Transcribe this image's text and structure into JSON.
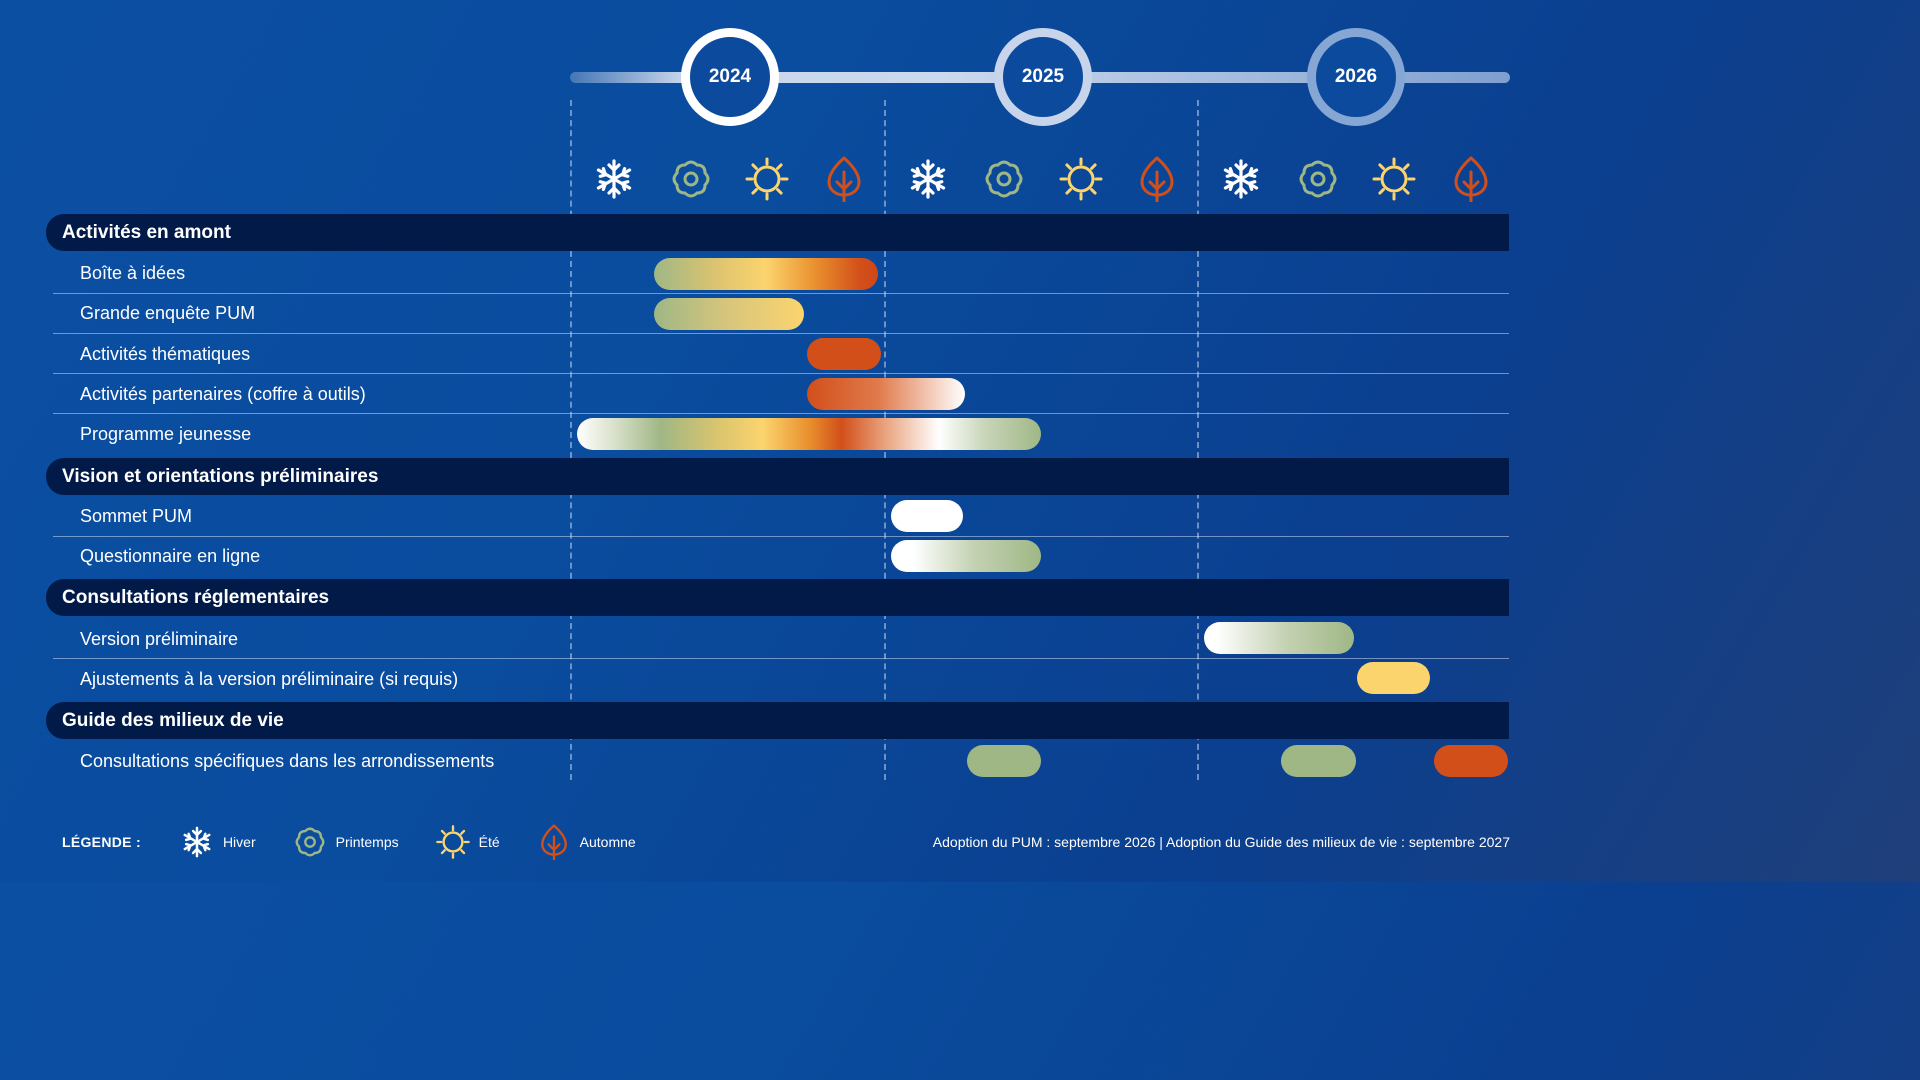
{
  "years": [
    "2024",
    "2025",
    "2026"
  ],
  "seasons": [
    "Hiver",
    "Printemps",
    "Été",
    "Automne"
  ],
  "colors": {
    "hiver": "#ffffff",
    "printemps": "#9fb785",
    "ete": "#fbd46e",
    "automne": "#d24f1a",
    "section_band": "#011a47"
  },
  "sections": [
    {
      "label": "Activités en amont",
      "tasks": [
        {
          "label": "Boîte à idées",
          "span": "Printemps 2024 – Automne 2024"
        },
        {
          "label": "Grande enquête PUM",
          "span": "Printemps 2024 – Été 2024"
        },
        {
          "label": "Activités thématiques",
          "span": "Automne 2024"
        },
        {
          "label": "Activités partenaires (coffre à outils)",
          "span": "Automne 2024 – Hiver 2025"
        },
        {
          "label": "Programme jeunesse",
          "span": "Hiver 2024 – Printemps 2025"
        }
      ]
    },
    {
      "label": "Vision et orientations préliminaires",
      "tasks": [
        {
          "label": "Sommet PUM",
          "span": "Hiver 2025"
        },
        {
          "label": "Questionnaire en ligne",
          "span": "Hiver 2025 – Printemps 2025"
        }
      ]
    },
    {
      "label": "Consultations réglementaires",
      "tasks": [
        {
          "label": "Version préliminaire",
          "span": "Hiver 2026 – Printemps 2026"
        },
        {
          "label": "Ajustements à la version préliminaire (si requis)",
          "span": "Été 2026"
        }
      ]
    },
    {
      "label": "Guide des milieux de vie",
      "tasks": [
        {
          "label": "Consultations spécifiques dans les arrondissements",
          "span": "Printemps 2025 ; Printemps 2026 ; Automne 2026"
        }
      ]
    }
  ],
  "legend": {
    "title": "LÉGENDE :",
    "items": [
      {
        "label": "Hiver",
        "icon": "snowflake-icon"
      },
      {
        "label": "Printemps",
        "icon": "flower-icon"
      },
      {
        "label": "Été",
        "icon": "sun-icon"
      },
      {
        "label": "Automne",
        "icon": "leaf-icon"
      }
    ]
  },
  "footnote": "Adoption du PUM : septembre 2026 | Adoption du Guide des milieux de vie : septembre 2027"
}
